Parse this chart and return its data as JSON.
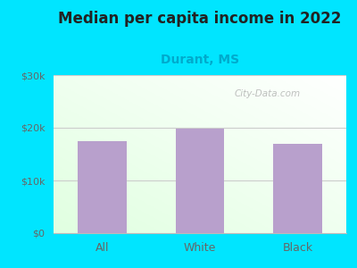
{
  "title": "Median per capita income in 2022",
  "subtitle": "Durant, MS",
  "categories": [
    "All",
    "White",
    "Black"
  ],
  "values": [
    17500,
    19800,
    17000
  ],
  "bar_color": "#b8a0cc",
  "title_fontsize": 12,
  "subtitle_fontsize": 10,
  "subtitle_color": "#00aacc",
  "title_color": "#222222",
  "tick_label_color": "#666666",
  "background_outer": "#00e5ff",
  "ylim": [
    0,
    30000
  ],
  "yticks": [
    0,
    10000,
    20000,
    30000
  ],
  "ytick_labels": [
    "$0",
    "$10k",
    "$20k",
    "$30k"
  ],
  "watermark": "City-Data.com",
  "grid_color": "#cccccc"
}
